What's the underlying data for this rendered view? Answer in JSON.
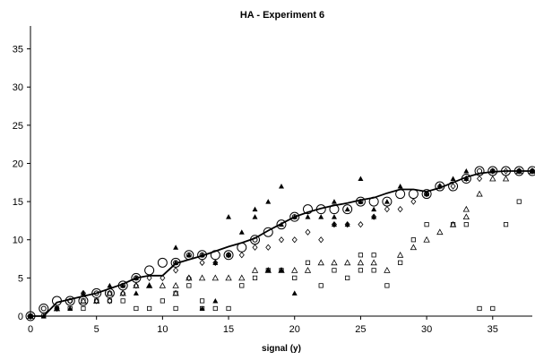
{
  "chart_data": {
    "type": "scatter",
    "title": "HA - Experiment 6",
    "xlabel": "signal (y)",
    "ylabel": "",
    "xlim": [
      0,
      38
    ],
    "ylim": [
      0,
      38
    ],
    "xticks": [
      0,
      5,
      10,
      15,
      20,
      25,
      30,
      35
    ],
    "yticks": [
      0,
      5,
      10,
      15,
      20,
      25,
      30,
      35
    ],
    "grid": false,
    "legend": false,
    "series": [
      {
        "marker": "large-open-circle",
        "points": [
          [
            0,
            0
          ],
          [
            1,
            1
          ],
          [
            2,
            2
          ],
          [
            3,
            2
          ],
          [
            4,
            2
          ],
          [
            5,
            3
          ],
          [
            6,
            3
          ],
          [
            7,
            4
          ],
          [
            8,
            5
          ],
          [
            9,
            6
          ],
          [
            10,
            7
          ],
          [
            11,
            7
          ],
          [
            12,
            8
          ],
          [
            13,
            8
          ],
          [
            14,
            8
          ],
          [
            15,
            8
          ],
          [
            16,
            9
          ],
          [
            17,
            10
          ],
          [
            18,
            11
          ],
          [
            19,
            12
          ],
          [
            20,
            13
          ],
          [
            21,
            14
          ],
          [
            22,
            14
          ],
          [
            23,
            14
          ],
          [
            24,
            14
          ],
          [
            25,
            15
          ],
          [
            26,
            15
          ],
          [
            27,
            15
          ],
          [
            28,
            16
          ],
          [
            29,
            16
          ],
          [
            30,
            16
          ],
          [
            31,
            17
          ],
          [
            32,
            17
          ],
          [
            33,
            18
          ],
          [
            34,
            19
          ],
          [
            35,
            19
          ],
          [
            36,
            19
          ],
          [
            37,
            19
          ],
          [
            38,
            19
          ]
        ]
      },
      {
        "marker": "small-open-circle",
        "points": [
          [
            0,
            0
          ],
          [
            1,
            1
          ],
          [
            3,
            2
          ],
          [
            5,
            3
          ],
          [
            6,
            3
          ],
          [
            7,
            4
          ],
          [
            8,
            5
          ],
          [
            11,
            7
          ],
          [
            12,
            8
          ],
          [
            13,
            8
          ],
          [
            15,
            8
          ],
          [
            17,
            10
          ],
          [
            20,
            13
          ],
          [
            25,
            15
          ],
          [
            30,
            16
          ],
          [
            34,
            19
          ],
          [
            35,
            19
          ],
          [
            37,
            19
          ],
          [
            38,
            19
          ]
        ]
      },
      {
        "marker": "filled-triangle",
        "points": [
          [
            0,
            0
          ],
          [
            1,
            0
          ],
          [
            2,
            1
          ],
          [
            3,
            1
          ],
          [
            4,
            3
          ],
          [
            6,
            4
          ],
          [
            7,
            4
          ],
          [
            8,
            5
          ],
          [
            8,
            3
          ],
          [
            9,
            4
          ],
          [
            11,
            9
          ],
          [
            11,
            7
          ],
          [
            12,
            8
          ],
          [
            13,
            8
          ],
          [
            14,
            7
          ],
          [
            14,
            2
          ],
          [
            13,
            1
          ],
          [
            15,
            13
          ],
          [
            15,
            8
          ],
          [
            16,
            11
          ],
          [
            17,
            14
          ],
          [
            17,
            13
          ],
          [
            18,
            15
          ],
          [
            18,
            6
          ],
          [
            19,
            17
          ],
          [
            19,
            12
          ],
          [
            19,
            6
          ],
          [
            20,
            13
          ],
          [
            20,
            3
          ],
          [
            21,
            13
          ],
          [
            22,
            13
          ],
          [
            23,
            15
          ],
          [
            23,
            13
          ],
          [
            23,
            12
          ],
          [
            24,
            14
          ],
          [
            24,
            12
          ],
          [
            25,
            18
          ],
          [
            25,
            15
          ],
          [
            26,
            14
          ],
          [
            26,
            13
          ],
          [
            27,
            15
          ],
          [
            28,
            17
          ],
          [
            30,
            16
          ],
          [
            31,
            17
          ],
          [
            32,
            18
          ],
          [
            33,
            19
          ],
          [
            33,
            18
          ],
          [
            35,
            19
          ],
          [
            37,
            19
          ],
          [
            38,
            19
          ]
        ]
      },
      {
        "marker": "open-diamond",
        "points": [
          [
            0,
            0
          ],
          [
            2,
            1
          ],
          [
            3,
            2
          ],
          [
            4,
            3
          ],
          [
            5,
            2
          ],
          [
            6,
            2
          ],
          [
            7,
            3
          ],
          [
            8,
            4
          ],
          [
            9,
            5
          ],
          [
            10,
            5
          ],
          [
            11,
            6
          ],
          [
            12,
            5
          ],
          [
            13,
            7
          ],
          [
            14,
            7
          ],
          [
            15,
            8
          ],
          [
            16,
            8
          ],
          [
            17,
            9
          ],
          [
            18,
            9
          ],
          [
            19,
            10
          ],
          [
            20,
            10
          ],
          [
            21,
            11
          ],
          [
            22,
            10
          ],
          [
            23,
            12
          ],
          [
            24,
            12
          ],
          [
            25,
            12
          ],
          [
            26,
            13
          ],
          [
            27,
            14
          ],
          [
            28,
            14
          ],
          [
            29,
            15
          ],
          [
            30,
            16
          ],
          [
            31,
            17
          ],
          [
            32,
            17
          ],
          [
            33,
            18
          ],
          [
            34,
            18
          ],
          [
            35,
            19
          ],
          [
            36,
            19
          ],
          [
            37,
            19
          ],
          [
            38,
            19
          ]
        ]
      },
      {
        "marker": "open-triangle",
        "points": [
          [
            0,
            0
          ],
          [
            2,
            1
          ],
          [
            4,
            2
          ],
          [
            5,
            2
          ],
          [
            6,
            3
          ],
          [
            7,
            3
          ],
          [
            8,
            4
          ],
          [
            9,
            4
          ],
          [
            10,
            4
          ],
          [
            11,
            4
          ],
          [
            11,
            3
          ],
          [
            12,
            5
          ],
          [
            13,
            5
          ],
          [
            14,
            5
          ],
          [
            15,
            5
          ],
          [
            16,
            5
          ],
          [
            17,
            6
          ],
          [
            18,
            6
          ],
          [
            19,
            6
          ],
          [
            20,
            6
          ],
          [
            21,
            6
          ],
          [
            22,
            7
          ],
          [
            23,
            7
          ],
          [
            24,
            7
          ],
          [
            25,
            7
          ],
          [
            26,
            7
          ],
          [
            27,
            6
          ],
          [
            28,
            8
          ],
          [
            29,
            9
          ],
          [
            30,
            10
          ],
          [
            31,
            11
          ],
          [
            32,
            12
          ],
          [
            33,
            13
          ],
          [
            33,
            14
          ],
          [
            34,
            16
          ],
          [
            35,
            18
          ],
          [
            36,
            18
          ],
          [
            37,
            19
          ],
          [
            38,
            19
          ]
        ]
      },
      {
        "marker": "open-square",
        "points": [
          [
            0,
            0
          ],
          [
            1,
            0
          ],
          [
            2,
            1
          ],
          [
            3,
            1
          ],
          [
            4,
            2
          ],
          [
            4,
            1
          ],
          [
            5,
            2
          ],
          [
            6,
            2
          ],
          [
            7,
            2
          ],
          [
            8,
            1
          ],
          [
            9,
            1
          ],
          [
            10,
            2
          ],
          [
            11,
            3
          ],
          [
            11,
            1
          ],
          [
            12,
            4
          ],
          [
            13,
            2
          ],
          [
            13,
            1
          ],
          [
            14,
            1
          ],
          [
            15,
            1
          ],
          [
            16,
            4
          ],
          [
            17,
            5
          ],
          [
            18,
            6
          ],
          [
            19,
            6
          ],
          [
            20,
            5
          ],
          [
            21,
            7
          ],
          [
            22,
            4
          ],
          [
            23,
            6
          ],
          [
            24,
            5
          ],
          [
            25,
            8
          ],
          [
            25,
            6
          ],
          [
            26,
            8
          ],
          [
            26,
            6
          ],
          [
            27,
            4
          ],
          [
            28,
            7
          ],
          [
            29,
            10
          ],
          [
            30,
            12
          ],
          [
            32,
            12
          ],
          [
            33,
            12
          ],
          [
            34,
            1
          ],
          [
            35,
            1
          ],
          [
            36,
            12
          ],
          [
            37,
            15
          ]
        ]
      },
      {
        "marker": "line",
        "points": [
          [
            0,
            0
          ],
          [
            1,
            0
          ],
          [
            2,
            1.8
          ],
          [
            3,
            2.2
          ],
          [
            4,
            2.6
          ],
          [
            5,
            3
          ],
          [
            6,
            3.6
          ],
          [
            7,
            4.2
          ],
          [
            8,
            5
          ],
          [
            9,
            5.3
          ],
          [
            10,
            5.3
          ],
          [
            11,
            6.9
          ],
          [
            12,
            7.4
          ],
          [
            13,
            7.9
          ],
          [
            14,
            8.5
          ],
          [
            15,
            9.1
          ],
          [
            16,
            9.6
          ],
          [
            17,
            10.2
          ],
          [
            18,
            11.2
          ],
          [
            19,
            12.1
          ],
          [
            20,
            13
          ],
          [
            21,
            13.6
          ],
          [
            22,
            14.1
          ],
          [
            23,
            14.5
          ],
          [
            24,
            14.8
          ],
          [
            25,
            15.2
          ],
          [
            26,
            15.5
          ],
          [
            27,
            16.1
          ],
          [
            28,
            16.6
          ],
          [
            29,
            16.6
          ],
          [
            30,
            16.3
          ],
          [
            31,
            16.8
          ],
          [
            32,
            17.5
          ],
          [
            33,
            18.2
          ],
          [
            34,
            18.7
          ],
          [
            35,
            18.9
          ],
          [
            36,
            19
          ],
          [
            37,
            19
          ],
          [
            38,
            19
          ]
        ]
      }
    ]
  }
}
